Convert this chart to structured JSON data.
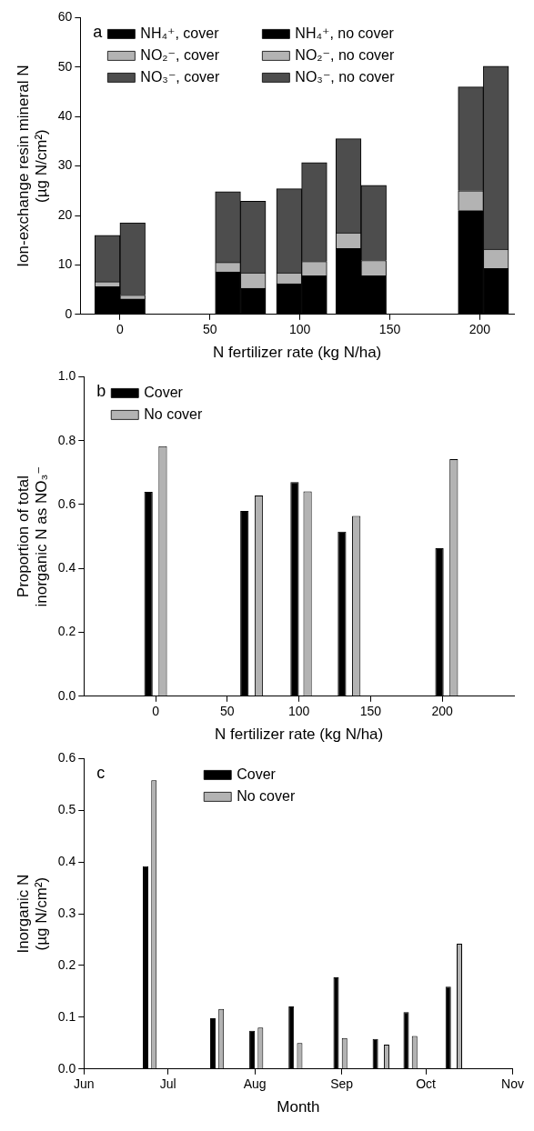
{
  "chart_data": [
    {
      "type": "bar",
      "stacked": true,
      "xlabel": "N fertilizer rate (kg N/ha)",
      "ylabel": "Ion-exchange resin mineral N\n(µg N/cm²)",
      "x": [
        -7,
        7,
        60,
        74,
        94,
        108,
        127,
        141,
        195,
        209
      ],
      "xlim": [
        -22,
        219
      ],
      "xticks": [
        0,
        50,
        100,
        150,
        200
      ],
      "ylim": [
        0,
        60
      ],
      "yticks": [
        0,
        10,
        20,
        30,
        40,
        50,
        60
      ],
      "legend": "top left",
      "annotations": [
        "a"
      ],
      "series": [
        {
          "name": "NH₄⁺, cover",
          "color": "#000000",
          "values": [
            5.6,
            null,
            8.6,
            null,
            6.2,
            null,
            13.3,
            null,
            21.0,
            null
          ]
        },
        {
          "name": "NO₂⁻, cover",
          "color": "#b3b3b3",
          "values": [
            1.0,
            null,
            1.9,
            null,
            2.2,
            null,
            3.2,
            null,
            4.0,
            null
          ]
        },
        {
          "name": "NO₃⁻, cover",
          "color": "#4d4d4d",
          "values": [
            9.4,
            null,
            14.3,
            null,
            17.0,
            null,
            19.0,
            null,
            21.0,
            null
          ]
        },
        {
          "name": "NH₄⁺, no cover",
          "color": "#000000",
          "values": [
            null,
            3.1,
            null,
            5.3,
            null,
            7.8,
            null,
            7.8,
            null,
            9.3
          ]
        },
        {
          "name": "NO₂⁻, no cover",
          "color": "#b3b3b3",
          "values": [
            null,
            0.8,
            null,
            3.1,
            null,
            2.9,
            null,
            3.1,
            null,
            3.9
          ]
        },
        {
          "name": "NO₃⁻, no cover",
          "color": "#4d4d4d",
          "values": [
            null,
            14.6,
            null,
            14.5,
            null,
            20.0,
            null,
            15.2,
            null,
            37.0
          ]
        }
      ]
    },
    {
      "type": "bar",
      "xlabel": "N fertilizer rate (kg N/ha)",
      "ylabel": "Proportion of total\ninorganic N as NO₃⁻",
      "xlim": [
        -50,
        250
      ],
      "xticks": [
        0,
        50,
        100,
        150,
        200
      ],
      "ylim": [
        0,
        1
      ],
      "yticks": [
        {
          "value": 0,
          "label": "0.0"
        },
        {
          "value": 0.2,
          "label": "0.2"
        },
        {
          "value": 0.4,
          "label": "0.4"
        },
        {
          "value": 0.6,
          "label": "0.6"
        },
        {
          "value": 0.8,
          "label": "0.8"
        },
        {
          "value": 1,
          "label": "1.0"
        }
      ],
      "legend": "top left",
      "annotations": [
        "b"
      ],
      "series": [
        {
          "name": "Cover",
          "color": "#000000",
          "x": [
            -5,
            62,
            97,
            130,
            198
          ],
          "values": [
            0.64,
            0.58,
            0.67,
            0.515,
            0.463
          ]
        },
        {
          "name": "No cover",
          "color": "#b3b3b3",
          "x": [
            5,
            72,
            106,
            140,
            208
          ],
          "values": [
            0.783,
            0.628,
            0.641,
            0.564,
            0.742
          ]
        }
      ]
    },
    {
      "type": "bar",
      "xlabel": "Month",
      "ylabel": "Inorganic N\n(µg N/cm²)",
      "xlim": [
        "--06-01",
        "--11-01"
      ],
      "xticks": [
        {
          "value": "--06-01",
          "label": "Jun"
        },
        {
          "value": "--07-01",
          "label": "Jul"
        },
        {
          "value": "--08-01",
          "label": "Aug"
        },
        {
          "value": "--09-01",
          "label": "Sep"
        },
        {
          "value": "--10-01",
          "label": "Oct"
        },
        {
          "value": "--11-01",
          "label": "Nov"
        }
      ],
      "ylim": [
        0,
        0.6
      ],
      "yticks": [
        {
          "value": 0,
          "label": "0.0"
        },
        {
          "value": 0.1,
          "label": "0.1"
        },
        {
          "value": 0.2,
          "label": "0.2"
        },
        {
          "value": 0.3,
          "label": "0.3"
        },
        {
          "value": 0.4,
          "label": "0.4"
        },
        {
          "value": 0.5,
          "label": "0.5"
        },
        {
          "value": 0.6,
          "label": "0.6"
        }
      ],
      "legend": "top",
      "annotations": [
        "c"
      ],
      "series": [
        {
          "name": "Cover",
          "color": "#000000",
          "x": [
            "--06-23",
            "--07-17",
            "--07-31",
            "--08-14",
            "--08-30",
            "--09-13",
            "--09-24",
            "--10-09"
          ],
          "values": [
            0.392,
            0.098,
            0.074,
            0.121,
            0.177,
            0.058,
            0.11,
            0.159
          ]
        },
        {
          "name": "No cover",
          "color": "#b3b3b3",
          "x": [
            "--06-26",
            "--07-20",
            "--08-03",
            "--08-17",
            "--09-02",
            "--09-17",
            "--09-27",
            "--10-13"
          ],
          "values": [
            0.558,
            0.116,
            0.08,
            0.05,
            0.06,
            0.047,
            0.064,
            0.242
          ]
        }
      ]
    }
  ]
}
